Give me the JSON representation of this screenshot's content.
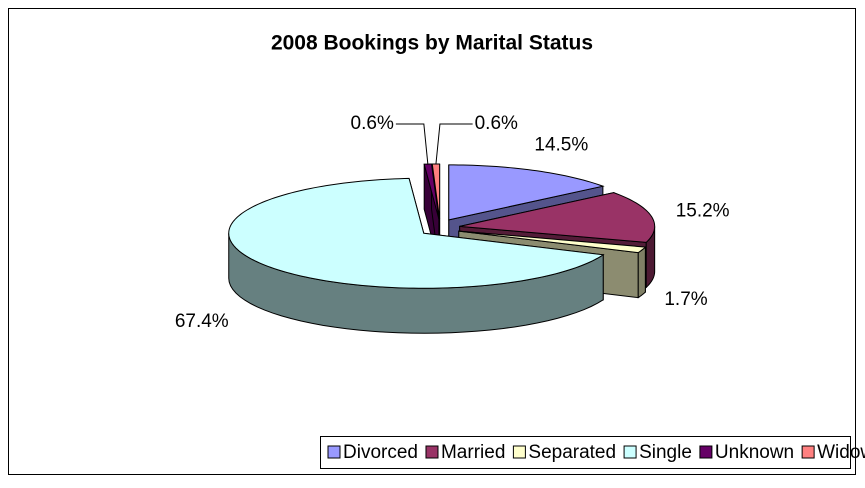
{
  "chart_data": {
    "type": "pie",
    "title": "2008 Bookings by Marital Status",
    "categories": [
      "Divorced",
      "Married",
      "Separated",
      "Single",
      "Unknown",
      "Widowed"
    ],
    "values": [
      14.5,
      15.2,
      1.7,
      67.4,
      0.6,
      0.6
    ],
    "value_labels": [
      "14.5%",
      "15.2%",
      "1.7%",
      "67.4%",
      "0.6%",
      "0.6%"
    ],
    "colors": [
      "#9999FF",
      "#993366",
      "#FFFFCC",
      "#CCFFFF",
      "#660066",
      "#FF8080"
    ],
    "legend": "bottom"
  }
}
